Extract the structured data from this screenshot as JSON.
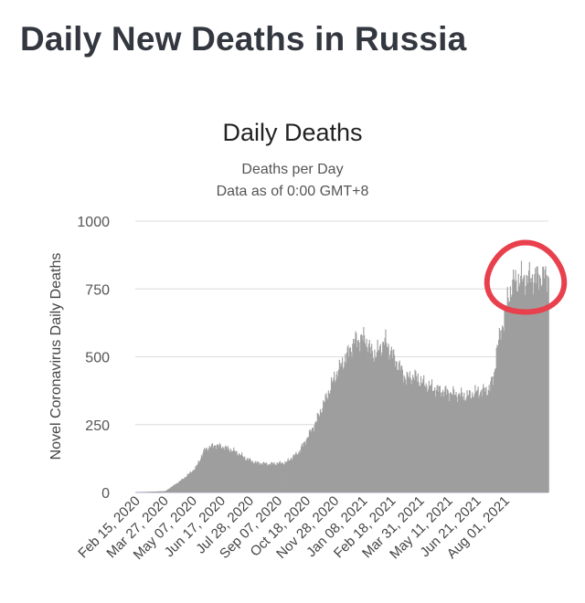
{
  "page": {
    "heading": "Daily New Deaths in Russia"
  },
  "chart_data": {
    "type": "bar",
    "title": "Daily Deaths",
    "subtitle_lines": [
      "Deaths per Day",
      "Data as of 0:00 GMT+8"
    ],
    "xlabel": "",
    "ylabel": "Novel Coronavirus Daily Deaths",
    "ylim": [
      0,
      1000
    ],
    "y_ticks": [
      "0",
      "250",
      "500",
      "750",
      "1000"
    ],
    "x_start": "2020-02-15",
    "x_end": "2021-08-31",
    "x_ticks": [
      "Feb 15, 2020",
      "Mar 27, 2020",
      "May 07, 2020",
      "Jun 17, 2020",
      "Jul 28, 2020",
      "Sep 07, 2020",
      "Oct 18, 2020",
      "Nov 28, 2020",
      "Jan 08, 2021",
      "Feb 18, 2021",
      "Mar 31, 2021",
      "May 11, 2021",
      "Jun 21, 2021",
      "Aug 01, 2021"
    ],
    "series": [
      {
        "values_approx_by_date": [
          [
            "2020-02-15",
            0
          ],
          [
            "2020-03-27",
            5
          ],
          [
            "2020-04-20",
            50
          ],
          [
            "2020-05-07",
            90
          ],
          [
            "2020-05-20",
            160
          ],
          [
            "2020-06-03",
            175
          ],
          [
            "2020-06-17",
            165
          ],
          [
            "2020-07-01",
            150
          ],
          [
            "2020-07-15",
            125
          ],
          [
            "2020-07-28",
            110
          ],
          [
            "2020-08-15",
            105
          ],
          [
            "2020-09-07",
            110
          ],
          [
            "2020-09-25",
            150
          ],
          [
            "2020-10-10",
            220
          ],
          [
            "2020-10-18",
            260
          ],
          [
            "2020-11-01",
            350
          ],
          [
            "2020-11-15",
            440
          ],
          [
            "2020-11-28",
            500
          ],
          [
            "2020-12-10",
            560
          ],
          [
            "2020-12-24",
            570
          ],
          [
            "2021-01-01",
            520
          ],
          [
            "2021-01-08",
            510
          ],
          [
            "2021-01-20",
            560
          ],
          [
            "2021-02-01",
            500
          ],
          [
            "2021-02-18",
            420
          ],
          [
            "2021-03-01",
            430
          ],
          [
            "2021-03-15",
            400
          ],
          [
            "2021-03-31",
            380
          ],
          [
            "2021-04-15",
            370
          ],
          [
            "2021-05-01",
            360
          ],
          [
            "2021-05-11",
            355
          ],
          [
            "2021-05-25",
            370
          ],
          [
            "2021-06-10",
            380
          ],
          [
            "2021-06-17",
            420
          ],
          [
            "2021-06-21",
            520
          ],
          [
            "2021-07-01",
            640
          ],
          [
            "2021-07-08",
            730
          ],
          [
            "2021-07-15",
            780
          ],
          [
            "2021-08-01",
            790
          ],
          [
            "2021-08-31",
            800
          ]
        ],
        "color": "#9e9e9e"
      }
    ],
    "annotation": {
      "shape": "hand-drawn circle",
      "color": "#e8404c",
      "around": "peak Jul–Aug 2021"
    }
  }
}
